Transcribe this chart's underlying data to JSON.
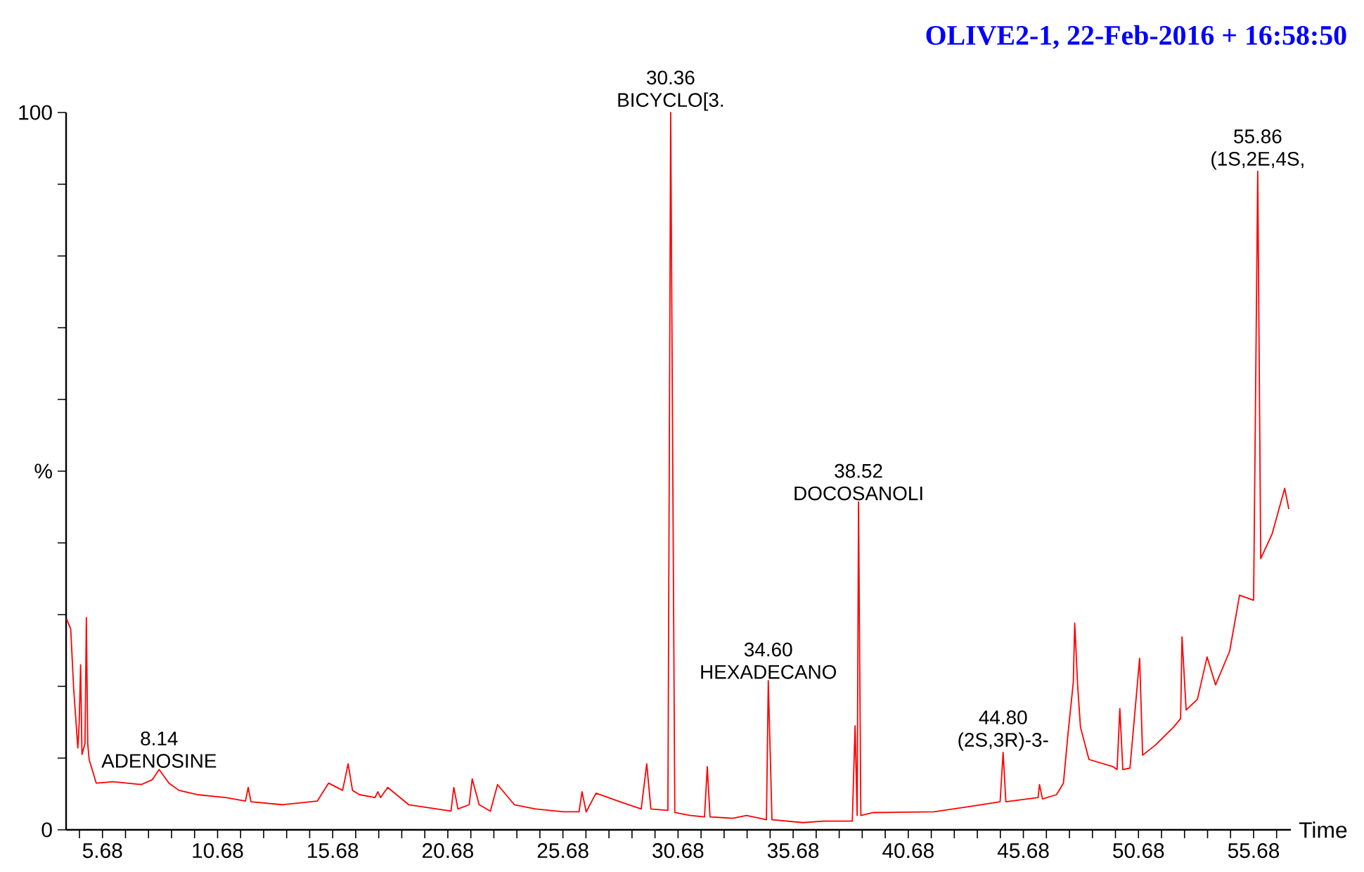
{
  "chart_data": {
    "type": "line",
    "title": "OLIVE2-1,  22-Feb-2016 + 16:58:50",
    "xlabel": "Time",
    "color": "#ff0000",
    "marker": "none",
    "line_style": "solid",
    "xlim": [
      4.1,
      57.3
    ],
    "ylim": [
      0,
      100
    ],
    "xticks": [
      {
        "value": 4.68,
        "label": null
      },
      5.68,
      {
        "value": 6.68,
        "label": null
      },
      {
        "value": 7.68,
        "label": null
      },
      {
        "value": 8.68,
        "label": null
      },
      {
        "value": 9.68,
        "label": null
      },
      10.68,
      {
        "value": 11.68,
        "label": null
      },
      {
        "value": 12.68,
        "label": null
      },
      {
        "value": 13.68,
        "label": null
      },
      {
        "value": 14.68,
        "label": null
      },
      15.68,
      {
        "value": 16.68,
        "label": null
      },
      {
        "value": 17.68,
        "label": null
      },
      {
        "value": 18.68,
        "label": null
      },
      {
        "value": 19.68,
        "label": null
      },
      20.68,
      {
        "value": 21.68,
        "label": null
      },
      {
        "value": 22.68,
        "label": null
      },
      {
        "value": 23.68,
        "label": null
      },
      {
        "value": 24.68,
        "label": null
      },
      25.68,
      {
        "value": 26.68,
        "label": null
      },
      {
        "value": 27.68,
        "label": null
      },
      {
        "value": 28.68,
        "label": null
      },
      {
        "value": 29.68,
        "label": null
      },
      30.68,
      {
        "value": 31.68,
        "label": null
      },
      {
        "value": 32.68,
        "label": null
      },
      {
        "value": 33.68,
        "label": null
      },
      {
        "value": 34.68,
        "label": null
      },
      35.68,
      {
        "value": 36.68,
        "label": null
      },
      {
        "value": 37.68,
        "label": null
      },
      {
        "value": 38.68,
        "label": null
      },
      {
        "value": 39.68,
        "label": null
      },
      40.68,
      {
        "value": 41.68,
        "label": null
      },
      {
        "value": 42.68,
        "label": null
      },
      {
        "value": 43.68,
        "label": null
      },
      {
        "value": 44.68,
        "label": null
      },
      45.68,
      {
        "value": 46.68,
        "label": null
      },
      {
        "value": 47.68,
        "label": null
      },
      {
        "value": 48.68,
        "label": null
      },
      {
        "value": 49.68,
        "label": null
      },
      50.68,
      {
        "value": 51.68,
        "label": null
      },
      {
        "value": 52.68,
        "label": null
      },
      {
        "value": 53.68,
        "label": null
      },
      {
        "value": 54.68,
        "label": null
      },
      55.68,
      {
        "value": 56.68,
        "label": null
      }
    ],
    "yticks": [
      0,
      {
        "value": 10,
        "label": null
      },
      {
        "value": 20,
        "label": null
      },
      {
        "value": 30,
        "label": null
      },
      {
        "value": 40,
        "label": null
      },
      {
        "value": 50,
        "label": "%"
      },
      {
        "value": 60,
        "label": null
      },
      {
        "value": 70,
        "label": null
      },
      {
        "value": 80,
        "label": null
      },
      {
        "value": 90,
        "label": null
      },
      100
    ],
    "x": [
      4.12,
      4.3,
      4.43,
      4.61,
      4.67,
      4.73,
      4.79,
      4.92,
      4.98,
      5.04,
      5.1,
      5.41,
      6.14,
      7.36,
      7.85,
      8.14,
      8.57,
      9.0,
      9.79,
      11.03,
      11.89,
      12.01,
      12.13,
      13.48,
      15.01,
      15.5,
      16.11,
      16.35,
      16.54,
      16.84,
      17.52,
      17.64,
      17.76,
      18.07,
      18.98,
      20.21,
      20.82,
      20.94,
      21.12,
      21.61,
      21.74,
      22.04,
      22.53,
      22.84,
      23.57,
      24.49,
      25.71,
      26.38,
      26.51,
      26.69,
      27.12,
      28.16,
      29.08,
      29.32,
      29.5,
      30.24,
      30.36,
      30.54,
      31.22,
      31.83,
      31.95,
      32.07,
      33.05,
      33.66,
      34.52,
      34.6,
      34.76,
      36.11,
      37.03,
      38.25,
      38.37,
      38.46,
      38.52,
      38.62,
      39.17,
      41.8,
      43.45,
      44.67,
      44.8,
      44.92,
      46.32,
      46.38,
      46.51,
      47.12,
      47.42,
      47.61,
      47.85,
      47.91,
      48.04,
      48.16,
      48.53,
      49.57,
      49.75,
      49.87,
      50.0,
      50.31,
      50.73,
      50.86,
      51.41,
      52.2,
      52.51,
      52.57,
      52.75,
      53.24,
      53.66,
      54.03,
      54.64,
      55.07,
      55.68,
      55.86,
      55.99,
      56.48,
      57.03,
      57.21
    ],
    "values": [
      29.4,
      28.0,
      19.6,
      11.4,
      15,
      23.0,
      10.5,
      12,
      29.6,
      12,
      9.8,
      6.5,
      6.7,
      6.3,
      7.0,
      8.4,
      6.5,
      5.5,
      4.9,
      4.5,
      4.0,
      5.9,
      3.9,
      3.5,
      4.0,
      6.5,
      5.5,
      9.2,
      5.5,
      4.9,
      4.5,
      5.3,
      4.5,
      5.9,
      3.5,
      2.9,
      2.6,
      5.9,
      2.9,
      3.5,
      7.1,
      3.5,
      2.6,
      6.3,
      3.5,
      2.9,
      2.5,
      2.5,
      5.3,
      2.5,
      5.1,
      3.9,
      2.9,
      9.2,
      2.9,
      2.7,
      100,
      2.4,
      2.0,
      1.8,
      8.8,
      1.8,
      1.6,
      2.0,
      1.4,
      20.8,
      1.4,
      1.0,
      1.2,
      1.2,
      14.5,
      2,
      45.7,
      2.0,
      2.4,
      2.5,
      3.3,
      3.9,
      10.8,
      3.9,
      4.5,
      6.3,
      4.3,
      4.9,
      6.5,
      13.1,
      20.6,
      28.8,
      20,
      14.3,
      9.8,
      8.8,
      8.4,
      16.9,
      8.4,
      8.6,
      23.9,
      10.4,
      11.8,
      14.3,
      15.5,
      26.9,
      16.7,
      18.2,
      24.1,
      20.2,
      24.9,
      32.7,
      32.0,
      91.8,
      37.8,
      41.2,
      47.6,
      44.7
    ],
    "annotations": [
      {
        "text": "8.14",
        "x": 8.14,
        "y": 8.4
      },
      {
        "text": "ADENOSINE",
        "x": 8.14,
        "y": 8.4
      },
      {
        "text": "30.36",
        "x": 30.36,
        "y": 100
      },
      {
        "text": "BICYCLO[3.",
        "x": 30.36,
        "y": 100
      },
      {
        "text": "34.60",
        "x": 34.6,
        "y": 20.8
      },
      {
        "text": "HEXADECANO",
        "x": 34.6,
        "y": 20.8
      },
      {
        "text": "38.52",
        "x": 38.52,
        "y": 45.7
      },
      {
        "text": "DOCOSANOLI",
        "x": 38.52,
        "y": 45.7
      },
      {
        "text": "44.80",
        "x": 44.8,
        "y": 10.8
      },
      {
        "text": "(2S,3R)-3-",
        "x": 44.8,
        "y": 10.8
      },
      {
        "text": "55.86",
        "x": 55.86,
        "y": 91.8
      },
      {
        "text": "(1S,2E,4S,",
        "x": 55.86,
        "y": 91.8
      }
    ]
  }
}
